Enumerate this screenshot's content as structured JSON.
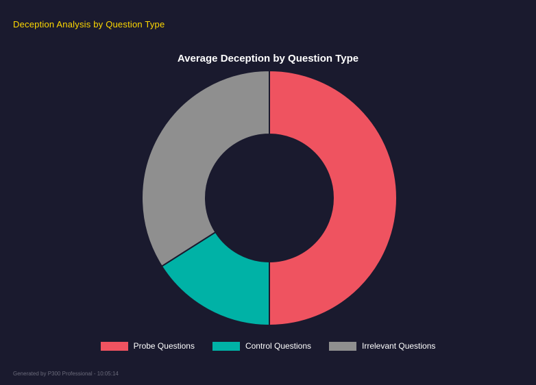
{
  "header": {
    "title": "Deception Analysis by Question Type"
  },
  "footer": {
    "text": "Generated by P300 Professional - 10:05:14"
  },
  "colors": {
    "background": "#1a1a2e",
    "header_text": "#ffd900",
    "title_text": "#ffffff",
    "legend_text": "#ffffff",
    "footer_text": "#6b6b7b"
  },
  "chart_data": {
    "type": "pie",
    "variant": "donut",
    "title": "Average Deception by Question Type",
    "labels": [
      "Probe Questions",
      "Control Questions",
      "Irrelevant Questions"
    ],
    "values": [
      50,
      16,
      34
    ],
    "values_note": "approximate percent share of arc, estimated from segment angles (no numeric labels shown)",
    "colors": [
      "#ef5360",
      "#00b2a6",
      "#8f8f8f"
    ],
    "start_angle_deg": 0,
    "direction": "clockwise",
    "inner_radius_ratio": 0.5,
    "legend_position": "bottom",
    "segment_border_width": 2
  }
}
